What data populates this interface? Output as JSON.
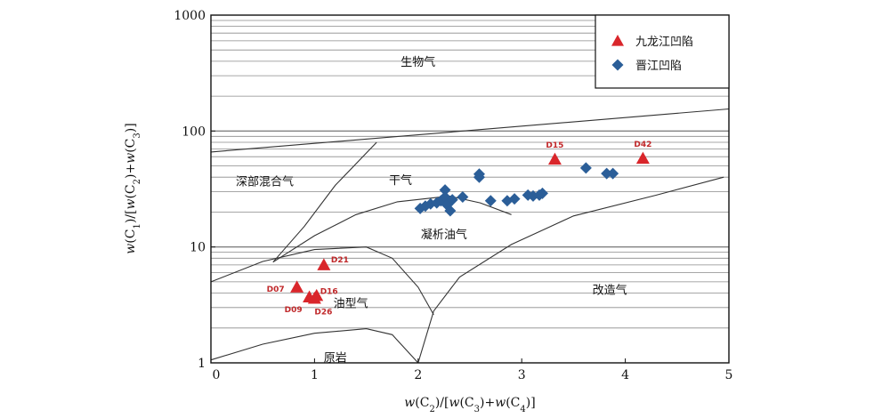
{
  "chart_data": {
    "type": "scatter",
    "xlabel_parts": [
      {
        "t": "w",
        "style": "italic"
      },
      {
        "t": "(C"
      },
      {
        "t": "2",
        "sub": true
      },
      {
        "t": ")/["
      },
      {
        "t": "w",
        "style": "italic"
      },
      {
        "t": "(C"
      },
      {
        "t": "3",
        "sub": true
      },
      {
        "t": ")+"
      },
      {
        "t": "w",
        "style": "italic"
      },
      {
        "t": "(C"
      },
      {
        "t": "4",
        "sub": true
      },
      {
        "t": ")]"
      }
    ],
    "ylabel_parts": [
      {
        "t": "w",
        "style": "italic"
      },
      {
        "t": "(C"
      },
      {
        "t": "1",
        "sub": true
      },
      {
        "t": ")/["
      },
      {
        "t": "w",
        "style": "italic"
      },
      {
        "t": "(C"
      },
      {
        "t": "2",
        "sub": true
      },
      {
        "t": ")+"
      },
      {
        "t": "w",
        "style": "italic"
      },
      {
        "t": "(C"
      },
      {
        "t": "3",
        "sub": true
      },
      {
        "t": ")]"
      }
    ],
    "xlim": [
      0,
      5
    ],
    "ylim": [
      1,
      1000
    ],
    "yscale": "log",
    "grid": "horizontal log minor lines",
    "legend_position": "top-right",
    "x_ticks": [
      0,
      1,
      2,
      3,
      4,
      5
    ],
    "x_tick_labels": [
      "0",
      "1",
      "2",
      "3",
      "4",
      "5"
    ],
    "y_ticks": [
      1,
      10,
      100,
      1000
    ],
    "y_tick_labels": [
      "1",
      "10",
      "100",
      "1000"
    ],
    "series": [
      {
        "name": "九龙江凹陷",
        "marker": "triangle",
        "color": "#d9262b",
        "points": [
          {
            "x": 0.83,
            "y": 4.5,
            "label": "D07"
          },
          {
            "x": 0.95,
            "y": 3.7,
            "label": "D09"
          },
          {
            "x": 1.02,
            "y": 3.8,
            "label": "D16"
          },
          {
            "x": 1.0,
            "y": 3.6,
            "label": "D26"
          },
          {
            "x": 1.09,
            "y": 7.0,
            "label": "D21"
          },
          {
            "x": 3.32,
            "y": 57,
            "label": "D15"
          },
          {
            "x": 4.17,
            "y": 58,
            "label": "D42"
          }
        ]
      },
      {
        "name": "晋江凹陷",
        "marker": "diamond",
        "color": "#2b5e98",
        "points": [
          {
            "x": 2.02,
            "y": 21.5
          },
          {
            "x": 2.07,
            "y": 22.5
          },
          {
            "x": 2.12,
            "y": 23.5
          },
          {
            "x": 2.18,
            "y": 24.0
          },
          {
            "x": 2.22,
            "y": 25.0
          },
          {
            "x": 2.26,
            "y": 31.0
          },
          {
            "x": 2.26,
            "y": 27.0
          },
          {
            "x": 2.28,
            "y": 23.0
          },
          {
            "x": 2.31,
            "y": 20.5
          },
          {
            "x": 2.33,
            "y": 25.5
          },
          {
            "x": 2.43,
            "y": 27.0
          },
          {
            "x": 2.59,
            "y": 40.0
          },
          {
            "x": 2.59,
            "y": 42.5
          },
          {
            "x": 2.7,
            "y": 25.0
          },
          {
            "x": 2.86,
            "y": 25.0
          },
          {
            "x": 2.93,
            "y": 26.0
          },
          {
            "x": 3.06,
            "y": 28.0
          },
          {
            "x": 3.11,
            "y": 27.5
          },
          {
            "x": 3.17,
            "y": 28.0
          },
          {
            "x": 3.2,
            "y": 29.0
          },
          {
            "x": 3.62,
            "y": 48.0
          },
          {
            "x": 3.82,
            "y": 43.0
          },
          {
            "x": 3.88,
            "y": 43.0
          }
        ]
      }
    ],
    "regions": [
      {
        "name": "生物气",
        "x": 2.0,
        "y": 400
      },
      {
        "name": "深部混合气",
        "x": 0.52,
        "y": 37
      },
      {
        "name": "干气",
        "x": 1.83,
        "y": 38
      },
      {
        "name": "凝析油气",
        "x": 2.25,
        "y": 13
      },
      {
        "name": "改造气",
        "x": 3.85,
        "y": 4.3
      },
      {
        "name": "油型气",
        "x": 1.35,
        "y": 3.3
      },
      {
        "name": "原岩",
        "x": 1.2,
        "y": 1.12
      }
    ],
    "boundaries": [
      [
        [
          0,
          66
        ],
        [
          5,
          155
        ]
      ],
      [
        [
          0.6,
          7.4
        ],
        [
          0.9,
          15
        ],
        [
          1.2,
          34
        ],
        [
          1.6,
          80
        ]
      ],
      [
        [
          0.6,
          7.4
        ],
        [
          1.0,
          12.5
        ],
        [
          1.4,
          19
        ],
        [
          1.8,
          24.5
        ],
        [
          2.3,
          27.5
        ],
        [
          2.6,
          24
        ],
        [
          2.9,
          19
        ]
      ],
      [
        [
          0,
          5.0
        ],
        [
          0.5,
          7.5
        ],
        [
          1.0,
          9.5
        ],
        [
          1.5,
          10
        ],
        [
          1.75,
          8
        ],
        [
          2.0,
          4.5
        ],
        [
          2.15,
          2.6
        ]
      ],
      [
        [
          0,
          1.06
        ],
        [
          0.5,
          1.45
        ],
        [
          1.0,
          1.8
        ],
        [
          1.5,
          1.97
        ],
        [
          1.75,
          1.75
        ],
        [
          2.0,
          1.0
        ]
      ],
      [
        [
          2.0,
          1.0
        ],
        [
          2.15,
          2.8
        ],
        [
          2.4,
          5.5
        ],
        [
          2.9,
          10.5
        ],
        [
          3.5,
          18.5
        ],
        [
          4.3,
          28
        ],
        [
          4.95,
          40
        ]
      ]
    ]
  }
}
